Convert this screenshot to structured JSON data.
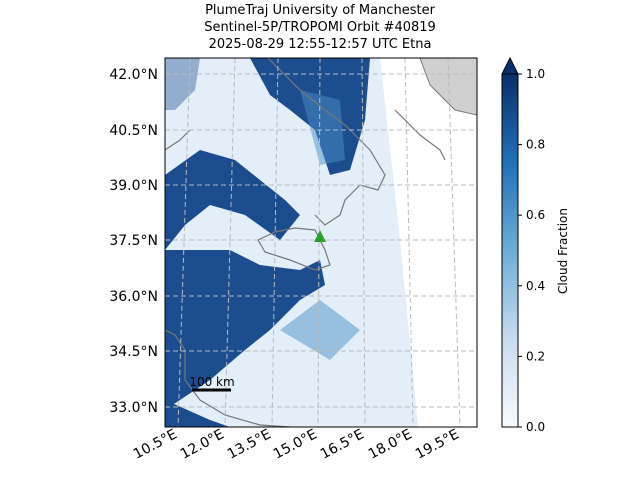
{
  "title": {
    "lines": [
      "PlumeTraj    University of Manchester",
      "Sentinel-5P/TROPOMI Orbit #40819",
      "2025-08-29   12:55-12:57 UTC   Etna"
    ]
  },
  "map": {
    "lat_labels": [
      "42.0°N",
      "40.5°N",
      "39.0°N",
      "37.5°N",
      "36.0°N",
      "34.5°N",
      "33.0°N"
    ],
    "lon_labels": [
      "10.5°E",
      "12.0°E",
      "13.5°E",
      "15.0°E",
      "16.5°E",
      "18.0°E",
      "19.5°E"
    ],
    "scale_bar": "100 km"
  },
  "colorbar": {
    "label": "Cloud Fraction",
    "lim": [
      0,
      1
    ],
    "ticks": [
      {
        "value": 0,
        "label": "0.0"
      },
      0.2,
      0.4,
      0.6,
      0.8,
      {
        "value": 1,
        "label": "1.0"
      }
    ]
  }
}
